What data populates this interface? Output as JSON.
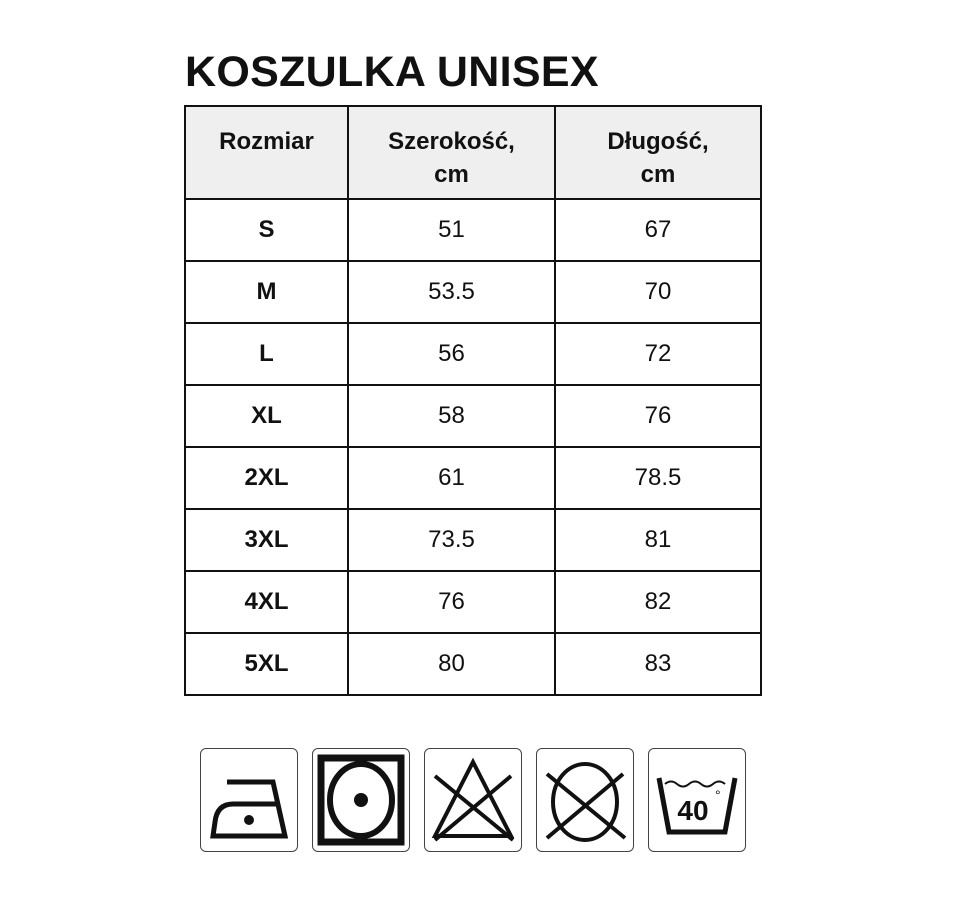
{
  "title": "KOSZULKA UNISEX",
  "table": {
    "headers": [
      "Rozmiar",
      "Szerokość,",
      "cm",
      "Długość,",
      "cm"
    ],
    "rows": [
      {
        "size": "S",
        "width": "51",
        "length": "67"
      },
      {
        "size": "M",
        "width": "53.5",
        "length": "70"
      },
      {
        "size": "L",
        "width": "56",
        "length": "72"
      },
      {
        "size": "XL",
        "width": "58",
        "length": "76"
      },
      {
        "size": "2XL",
        "width": "61",
        "length": "78.5"
      },
      {
        "size": "3XL",
        "width": "73.5",
        "length": "81"
      },
      {
        "size": "4XL",
        "width": "76",
        "length": "82"
      },
      {
        "size": "5XL",
        "width": "80",
        "length": "83"
      }
    ]
  },
  "care_icons": [
    {
      "name": "iron-low-temperature-icon"
    },
    {
      "name": "tumble-dry-low-icon"
    },
    {
      "name": "do-not-bleach-icon"
    },
    {
      "name": "do-not-dry-clean-icon"
    },
    {
      "name": "wash-40-icon",
      "label": "40",
      "degree": "°"
    }
  ]
}
